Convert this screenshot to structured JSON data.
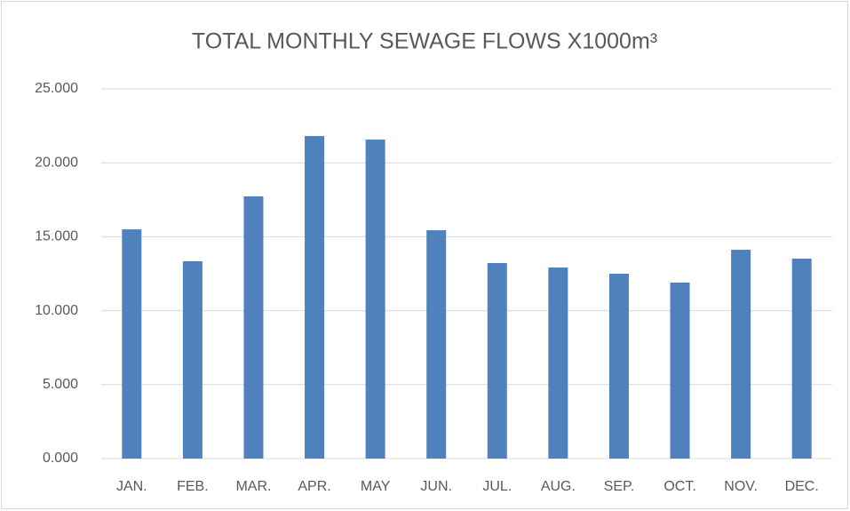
{
  "chart_data": {
    "type": "bar",
    "title": "TOTAL MONTHLY SEWAGE FLOWS X1000m³",
    "categories": [
      "JAN.",
      "FEB.",
      "MAR.",
      "APR.",
      "MAY",
      "JUN.",
      "JUL.",
      "AUG.",
      "SEP.",
      "OCT.",
      "NOV.",
      "DEC."
    ],
    "values": [
      15.5,
      13.34,
      17.73,
      21.81,
      21.57,
      15.44,
      13.22,
      12.92,
      12.5,
      11.9,
      14.12,
      13.52
    ],
    "color": "#4f81bd",
    "ylim": [
      0,
      25
    ],
    "yticks": [
      {
        "value": 0,
        "label": "0.000"
      },
      {
        "value": 5,
        "label": "5.000"
      },
      {
        "value": 10,
        "label": "10.000"
      },
      {
        "value": 15,
        "label": "15.000"
      },
      {
        "value": 20,
        "label": "20.000"
      },
      {
        "value": 25,
        "label": "25.000"
      }
    ],
    "grid": true
  }
}
